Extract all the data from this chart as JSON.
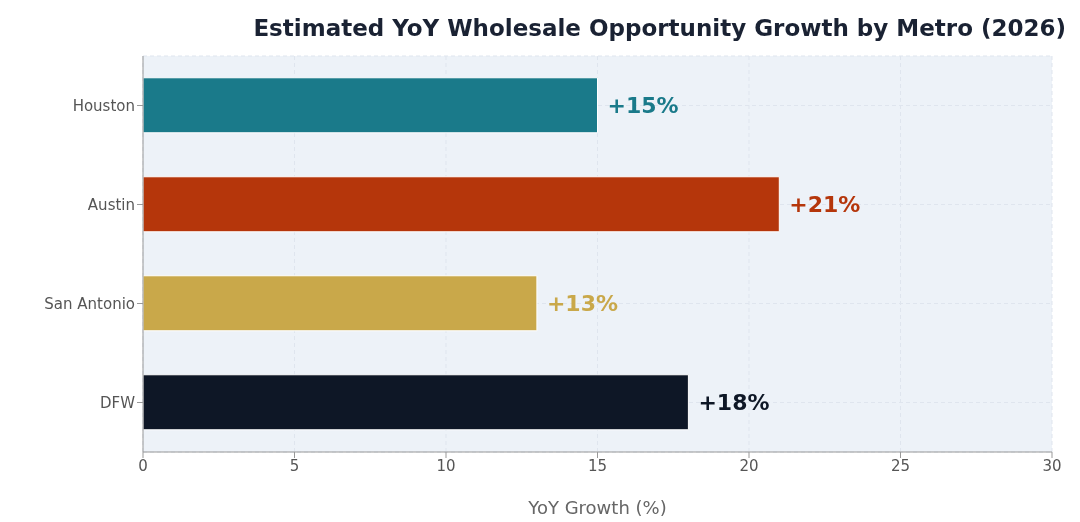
{
  "chart_data": {
    "type": "bar",
    "orientation": "horizontal",
    "title": "Estimated YoY Wholesale Opportunity Growth by Metro (2026)",
    "xlabel": "YoY Growth (%)",
    "categories": [
      "Houston",
      "Austin",
      "San Antonio",
      "DFW"
    ],
    "values": [
      15,
      21,
      13,
      18
    ],
    "colors": [
      "#1a7a8a",
      "#b5360b",
      "#c9a84a",
      "#0e1726"
    ],
    "value_labels": [
      "+15%",
      "+21%",
      "+13%",
      "+18%"
    ],
    "xlim": [
      0,
      30
    ],
    "xticks": [
      0,
      5,
      10,
      15,
      20,
      25,
      30
    ],
    "grid": true
  }
}
